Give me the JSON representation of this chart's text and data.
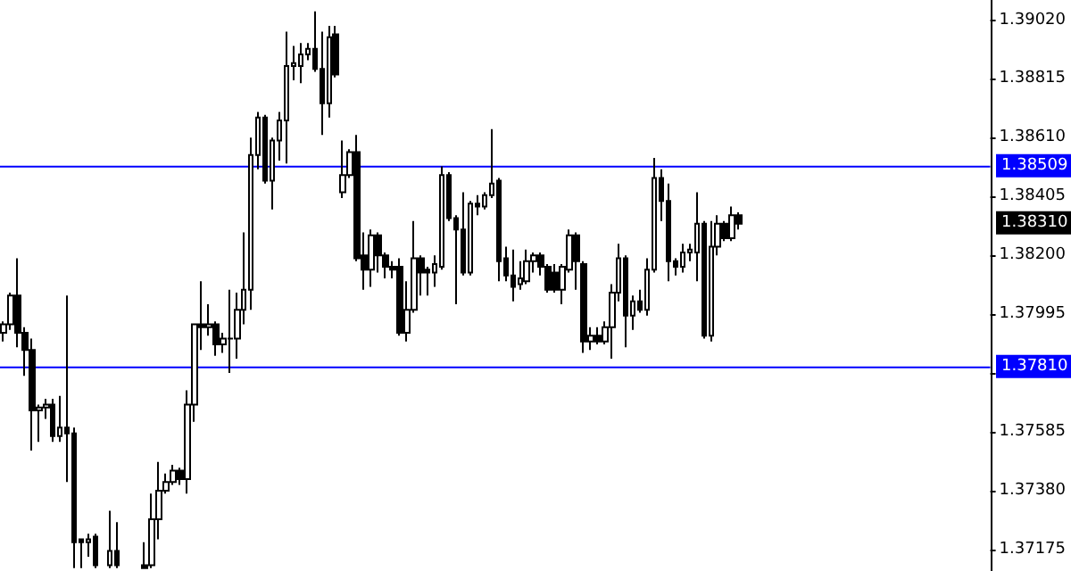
{
  "chart_data": {
    "type": "candlestick",
    "categories": [
      null,
      null,
      null,
      null,
      null,
      null,
      null,
      null,
      null,
      null,
      null,
      null,
      null,
      null,
      null,
      null,
      null,
      null,
      null,
      null,
      null,
      null,
      null,
      null,
      null,
      null,
      null,
      null,
      null,
      null,
      null,
      null,
      null,
      null,
      null,
      null,
      null,
      null,
      null,
      null,
      null,
      null,
      null,
      null,
      null,
      null,
      null,
      null,
      null,
      null,
      null,
      null,
      null,
      null,
      null,
      null,
      null,
      null,
      null,
      null,
      null,
      null,
      null,
      null,
      null,
      null,
      null,
      null,
      null,
      null,
      null,
      null,
      null,
      null,
      null,
      null,
      null,
      null,
      null,
      null,
      null,
      null,
      null,
      null,
      null,
      null,
      null,
      null,
      null,
      null,
      null,
      null,
      null,
      null,
      null,
      null,
      null,
      null,
      null,
      null,
      null,
      null,
      null,
      null,
      null,
      null,
      null,
      null,
      null,
      null,
      null,
      null,
      null,
      null,
      null,
      null,
      null,
      null,
      null,
      null,
      null,
      null,
      null,
      null,
      null,
      null,
      null,
      null,
      null,
      null,
      null,
      null,
      null,
      null,
      null,
      null,
      null,
      null,
      null,
      null
    ],
    "ohlc": [
      [
        1.3793,
        1.3797,
        1.379,
        1.3796
      ],
      [
        1.3796,
        1.3807,
        1.3794,
        1.3806
      ],
      [
        1.3806,
        1.3819,
        1.3788,
        1.3793
      ],
      [
        1.3793,
        1.3795,
        1.3778,
        1.3787
      ],
      [
        1.3787,
        1.3791,
        1.3752,
        1.3766
      ],
      [
        1.3766,
        1.3768,
        1.3755,
        1.3767
      ],
      [
        1.3767,
        1.377,
        1.3763,
        1.3768
      ],
      [
        1.3768,
        1.377,
        1.3755,
        1.3757
      ],
      [
        1.3757,
        1.3771,
        1.3755,
        1.376
      ],
      [
        1.376,
        1.3806,
        1.3741,
        1.3758
      ],
      [
        1.3758,
        1.376,
        1.3711,
        1.372
      ],
      [
        1.3721,
        1.3721,
        1.3711,
        1.372
      ],
      [
        1.372,
        1.3723,
        1.3715,
        1.3721
      ],
      [
        1.3722,
        1.3723,
        1.3711,
        1.3712
      ],
      null,
      [
        1.3712,
        1.3731,
        1.3711,
        1.3717
      ],
      [
        1.3717,
        1.3727,
        1.3711,
        1.3712
      ],
      null,
      null,
      null,
      [
        1.3712,
        1.372,
        1.3711,
        1.3711
      ],
      [
        1.3712,
        1.3737,
        1.3711,
        1.3728
      ],
      [
        1.3728,
        1.3748,
        1.3721,
        1.3738
      ],
      [
        1.3738,
        1.3744,
        1.3737,
        1.3741
      ],
      [
        1.3741,
        1.3747,
        1.374,
        1.3745
      ],
      [
        1.3745,
        1.3746,
        1.374,
        1.3742
      ],
      [
        1.3742,
        1.3773,
        1.3737,
        1.3768
      ],
      [
        1.3768,
        1.3796,
        1.3762,
        1.3796
      ],
      [
        1.3796,
        1.3811,
        1.3787,
        1.3795
      ],
      [
        1.3795,
        1.3803,
        1.3792,
        1.3796
      ],
      [
        1.3796,
        1.3797,
        1.3785,
        1.3789
      ],
      [
        1.3789,
        1.3793,
        1.3786,
        1.3791
      ],
      [
        1.3791,
        1.3808,
        1.3779,
        1.3791
      ],
      [
        1.3791,
        1.3807,
        1.3784,
        1.3801
      ],
      [
        1.3801,
        1.3828,
        1.3796,
        1.3808
      ],
      [
        1.3808,
        1.3861,
        1.3801,
        1.3855
      ],
      [
        1.3855,
        1.387,
        1.385,
        1.3868
      ],
      [
        1.3868,
        1.3869,
        1.3845,
        1.3846
      ],
      [
        1.3846,
        1.3861,
        1.3836,
        1.386
      ],
      [
        1.386,
        1.387,
        1.3853,
        1.3867
      ],
      [
        1.3867,
        1.3898,
        1.3852,
        1.3886
      ],
      [
        1.3886,
        1.3893,
        1.3881,
        1.3887
      ],
      [
        1.3886,
        1.3894,
        1.388,
        1.389
      ],
      [
        1.389,
        1.3894,
        1.3888,
        1.3892
      ],
      [
        1.3892,
        1.3905,
        1.3884,
        1.3885
      ],
      [
        1.3885,
        1.3898,
        1.3862,
        1.3873
      ],
      [
        1.3873,
        1.39,
        1.3868,
        1.3896
      ],
      [
        1.3897,
        1.39,
        1.3882,
        1.3883
      ],
      [
        1.3842,
        1.386,
        1.384,
        1.3848
      ],
      [
        1.3848,
        1.3857,
        1.3847,
        1.3856
      ],
      [
        1.3856,
        1.3862,
        1.3818,
        1.3819
      ],
      [
        1.382,
        1.3828,
        1.3808,
        1.3815
      ],
      [
        1.3815,
        1.3829,
        1.3809,
        1.3827
      ],
      [
        1.3827,
        1.3828,
        1.3814,
        1.382
      ],
      [
        1.382,
        1.3821,
        1.3812,
        1.3816
      ],
      [
        1.3816,
        1.3818,
        1.3812,
        1.3815
      ],
      [
        1.3816,
        1.3819,
        1.3792,
        1.3793
      ],
      [
        1.3793,
        1.3811,
        1.379,
        1.3801
      ],
      [
        1.3801,
        1.3832,
        1.38,
        1.3819
      ],
      [
        1.3819,
        1.382,
        1.3806,
        1.3814
      ],
      [
        1.3815,
        1.3816,
        1.3806,
        1.3814
      ],
      [
        1.3814,
        1.382,
        1.3809,
        1.3817
      ],
      [
        1.3816,
        1.3851,
        1.3815,
        1.3848
      ],
      [
        1.3848,
        1.3849,
        1.3832,
        1.3833
      ],
      [
        1.3833,
        1.3834,
        1.3803,
        1.3829
      ],
      [
        1.3829,
        1.3842,
        1.3813,
        1.3814
      ],
      [
        1.3814,
        1.3839,
        1.3813,
        1.3838
      ],
      [
        1.3838,
        1.3841,
        1.3834,
        1.3837
      ],
      [
        1.3837,
        1.3842,
        1.3836,
        1.3841
      ],
      [
        1.3841,
        1.3864,
        1.384,
        1.3845
      ],
      [
        1.3846,
        1.3847,
        1.3811,
        1.3818
      ],
      [
        1.3819,
        1.3823,
        1.3811,
        1.3813
      ],
      [
        1.3813,
        1.3822,
        1.3804,
        1.3809
      ],
      [
        1.381,
        1.3818,
        1.3808,
        1.3812
      ],
      [
        1.3811,
        1.3822,
        1.381,
        1.3818
      ],
      [
        1.3818,
        1.3821,
        1.3814,
        1.382
      ],
      [
        1.382,
        1.3821,
        1.3813,
        1.3816
      ],
      [
        1.3816,
        1.3817,
        1.3807,
        1.3808
      ],
      [
        1.3814,
        1.3817,
        1.3807,
        1.3808
      ],
      [
        1.3808,
        1.3817,
        1.3803,
        1.3816
      ],
      [
        1.3815,
        1.3829,
        1.3814,
        1.3827
      ],
      [
        1.3827,
        1.3828,
        1.3808,
        1.3818
      ],
      [
        1.3817,
        1.3818,
        1.3786,
        1.379
      ],
      [
        1.379,
        1.3795,
        1.3787,
        1.3792
      ],
      [
        1.3792,
        1.3795,
        1.3789,
        1.379
      ],
      [
        1.379,
        1.3797,
        1.3789,
        1.3795
      ],
      [
        1.3795,
        1.381,
        1.3784,
        1.3807
      ],
      [
        1.3807,
        1.3824,
        1.3804,
        1.3819
      ],
      [
        1.3819,
        1.382,
        1.3788,
        1.3799
      ],
      [
        1.3799,
        1.3806,
        1.3794,
        1.3804
      ],
      [
        1.3804,
        1.3808,
        1.38,
        1.3801
      ],
      [
        1.3801,
        1.3819,
        1.3799,
        1.3815
      ],
      [
        1.3815,
        1.3854,
        1.3814,
        1.3847
      ],
      [
        1.3847,
        1.385,
        1.3832,
        1.3839
      ],
      [
        1.3839,
        1.3845,
        1.3811,
        1.3818
      ],
      [
        1.3818,
        1.3819,
        1.3813,
        1.3816
      ],
      [
        1.3816,
        1.3824,
        1.3814,
        1.3821
      ],
      [
        1.3821,
        1.3824,
        1.3818,
        1.3822
      ],
      [
        1.3821,
        1.3842,
        1.3811,
        1.3831
      ],
      [
        1.3831,
        1.3832,
        1.3791,
        1.3792
      ],
      [
        1.3792,
        1.3832,
        1.379,
        1.3823
      ],
      [
        1.3823,
        1.3834,
        1.382,
        1.3831
      ],
      [
        1.3831,
        1.3832,
        1.3825,
        1.3826
      ],
      [
        1.3826,
        1.3837,
        1.3825,
        1.3834
      ],
      [
        1.3834,
        1.3835,
        1.3829,
        1.3831
      ],
      null,
      null,
      null,
      null,
      null,
      null,
      null,
      null,
      null,
      null,
      null,
      null,
      null,
      null,
      null,
      null,
      null,
      null,
      null,
      null,
      null,
      null,
      null,
      null,
      null,
      null,
      null,
      null,
      null,
      null,
      null,
      null,
      null,
      null,
      null
    ],
    "ylim": [
      1.371,
      1.3909
    ],
    "yticks": [
      {
        "value": 1.3902,
        "label": "1.39020"
      },
      {
        "value": 1.38815,
        "label": "1.38815"
      },
      {
        "value": 1.3861,
        "label": "1.38610"
      },
      {
        "value": 1.38405,
        "label": "1.38405"
      },
      {
        "value": 1.382,
        "label": "1.38200"
      },
      {
        "value": 1.37995,
        "label": "1.37995"
      },
      {
        "value": 1.3779,
        "label": null
      },
      {
        "value": 1.37585,
        "label": "1.37585"
      },
      {
        "value": 1.3738,
        "label": "1.37380"
      },
      {
        "value": 1.37175,
        "label": "1.37175"
      }
    ],
    "ref_lines": [
      {
        "axis": "y",
        "value": 1.38509,
        "label": "1.38509",
        "color": "#0000ff"
      },
      {
        "axis": "y",
        "value": 1.3781,
        "label": "1.37810",
        "color": "#0000ff"
      }
    ],
    "annotations": [
      "1.38310"
    ],
    "grid": false,
    "tick_labels": "y"
  }
}
